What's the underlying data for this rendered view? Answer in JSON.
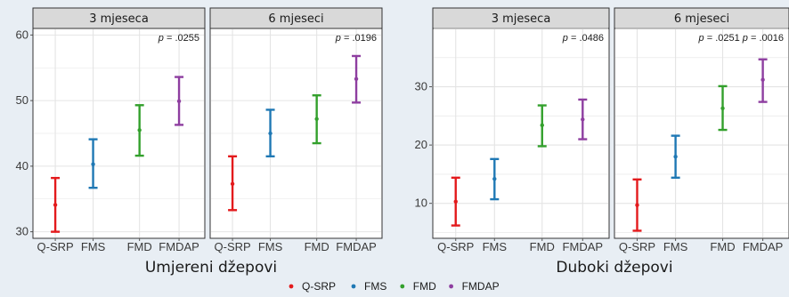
{
  "colors": {
    "background": "#e8eef4",
    "panel": "#ffffff",
    "strip": "#d9d9d9",
    "grid": "#e4e4e4",
    "Q-SRP": "#e31a1c",
    "FMS": "#1f78b4",
    "FMD": "#33a02c",
    "FMDAP": "#8e3ea0"
  },
  "legend": [
    "Q-SRP",
    "FMS",
    "FMD",
    "FMDAP"
  ],
  "chart_data": [
    {
      "type": "errorbar",
      "group_title": "Umjereni džepovi",
      "ylim": [
        29,
        61
      ],
      "yticks": [
        30,
        40,
        50,
        60
      ],
      "categories": [
        "Q-SRP",
        "FMS",
        "FMD",
        "FMDAP"
      ],
      "panels": [
        {
          "strip": "3 mjeseca",
          "p_label": "p",
          "p_value": " = .0255",
          "mean": [
            34.1,
            40.3,
            45.5,
            49.9
          ],
          "lower": [
            30.0,
            36.7,
            41.6,
            46.3
          ],
          "upper": [
            38.2,
            44.1,
            49.3,
            53.6
          ]
        },
        {
          "strip": "6 mjeseci",
          "p_label": "p",
          "p_value": " = .0196",
          "mean": [
            37.3,
            45.0,
            47.2,
            53.3
          ],
          "lower": [
            33.3,
            41.5,
            43.5,
            49.7
          ],
          "upper": [
            41.5,
            48.6,
            50.8,
            56.8
          ]
        }
      ]
    },
    {
      "type": "errorbar",
      "group_title": "Duboki džepovi",
      "ylim": [
        4,
        40
      ],
      "yticks": [
        10,
        20,
        30
      ],
      "categories": [
        "Q-SRP",
        "FMS",
        "FMD",
        "FMDAP"
      ],
      "panels": [
        {
          "strip": "3 mjeseca",
          "p_label": "p",
          "p_value": " = .0486",
          "mean": [
            10.3,
            14.2,
            23.4,
            24.4
          ],
          "lower": [
            6.2,
            10.7,
            19.8,
            21.0
          ],
          "upper": [
            14.4,
            17.6,
            26.8,
            27.8
          ]
        },
        {
          "strip": "6 mjeseci",
          "p_label": "p",
          "p_value": " = .0251",
          "p2_label": "p",
          "p2_value": " = .0016",
          "mean": [
            9.7,
            18.0,
            26.3,
            31.2
          ],
          "lower": [
            5.3,
            14.4,
            22.6,
            27.4
          ],
          "upper": [
            14.1,
            21.6,
            30.1,
            34.7
          ]
        }
      ]
    }
  ]
}
